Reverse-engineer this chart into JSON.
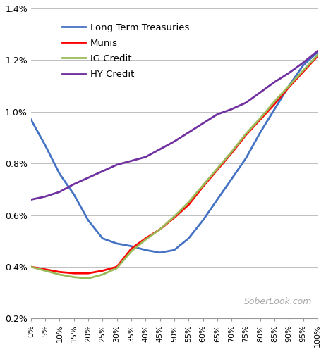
{
  "x_labels": [
    "0%",
    "5%",
    "10%",
    "15%",
    "20%",
    "25%",
    "30%",
    "35%",
    "40%",
    "45%",
    "50%",
    "55%",
    "60%",
    "65%",
    "70%",
    "75%",
    "80%",
    "85%",
    "90%",
    "95%",
    "100%"
  ],
  "x_values": [
    0,
    5,
    10,
    15,
    20,
    25,
    30,
    35,
    40,
    45,
    50,
    55,
    60,
    65,
    70,
    75,
    80,
    85,
    90,
    95,
    100
  ],
  "long_term_treasuries": [
    0.97,
    0.87,
    0.76,
    0.68,
    0.58,
    0.51,
    0.49,
    0.48,
    0.465,
    0.455,
    0.465,
    0.51,
    0.58,
    0.66,
    0.74,
    0.82,
    0.92,
    1.01,
    1.1,
    1.18,
    1.23
  ],
  "munis": [
    0.4,
    0.39,
    0.38,
    0.375,
    0.375,
    0.385,
    0.4,
    0.47,
    0.51,
    0.545,
    0.59,
    0.64,
    0.71,
    0.775,
    0.84,
    0.91,
    0.97,
    1.03,
    1.095,
    1.155,
    1.215
  ],
  "ig_credit": [
    0.4,
    0.385,
    0.37,
    0.36,
    0.355,
    0.37,
    0.395,
    0.46,
    0.505,
    0.545,
    0.595,
    0.65,
    0.715,
    0.78,
    0.845,
    0.915,
    0.975,
    1.04,
    1.1,
    1.16,
    1.22
  ],
  "hy_credit": [
    0.66,
    0.672,
    0.69,
    0.72,
    0.745,
    0.77,
    0.795,
    0.81,
    0.825,
    0.855,
    0.885,
    0.92,
    0.955,
    0.99,
    1.01,
    1.035,
    1.075,
    1.115,
    1.15,
    1.19,
    1.235
  ],
  "colors": {
    "long_term_treasuries": "#4472C4",
    "munis": "#FF0000",
    "ig_credit": "#9BBB59",
    "hy_credit": "#7030A0"
  },
  "ylim": [
    0.2,
    1.4
  ],
  "yticks": [
    0.2,
    0.4,
    0.6,
    0.8,
    1.0,
    1.2,
    1.4
  ],
  "ytick_labels": [
    "0.2%",
    "0.4%",
    "0.6%",
    "0.8%",
    "1.0%",
    "1.2%",
    "1.4%"
  ],
  "legend_labels": [
    "Long Term Treasuries",
    "Munis",
    "IG Credit",
    "HY Credit"
  ],
  "watermark": "SoberLook.com",
  "background_color": "#FFFFFF",
  "grid_color": "#C0C0C0"
}
